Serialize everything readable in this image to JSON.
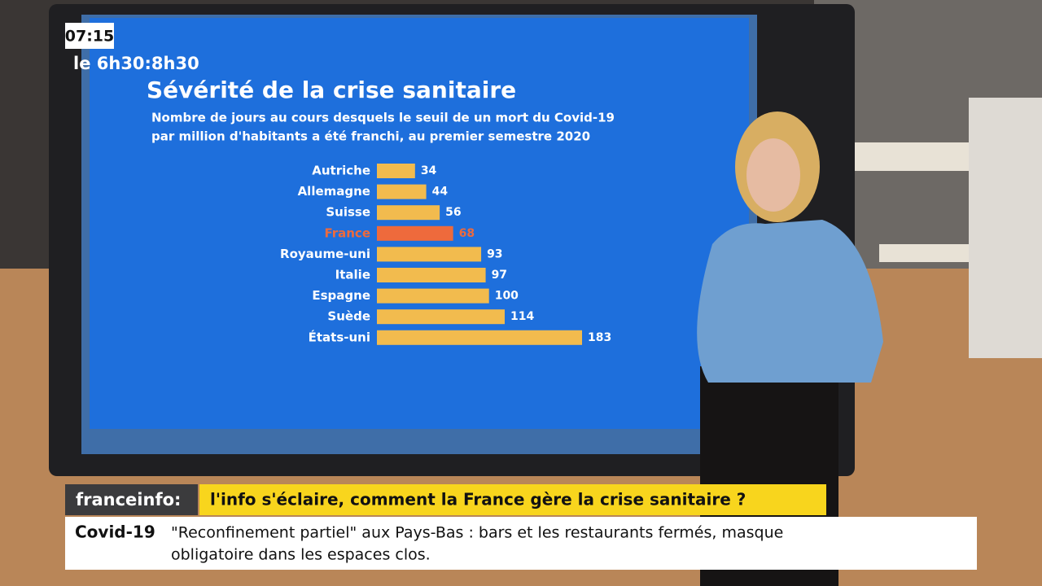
{
  "chart_data": {
    "type": "bar",
    "orientation": "horizontal",
    "title": "Sévérité de la crise sanitaire",
    "subtitle": [
      "Nombre de jours au cours desquels le seuil de un mort du Covid-19",
      "par million d'habitants a été franchi, au premier semestre 2020"
    ],
    "categories": [
      "Autriche",
      "Allemagne",
      "Suisse",
      "France",
      "Royaume-uni",
      "Italie",
      "Espagne",
      "Suède",
      "États-uni"
    ],
    "values": [
      34,
      44,
      56,
      68,
      93,
      97,
      100,
      114,
      183
    ],
    "colors": [
      "#f2bb4e",
      "#f2bb4e",
      "#f2bb4e",
      "#ee6a3c",
      "#f2bb4e",
      "#f2bb4e",
      "#f2bb4e",
      "#f2bb4e",
      "#f2bb4e"
    ]
  },
  "overlay": {
    "clock": "07:15",
    "slot": "le 6h30:8h30",
    "brand": "franceinfo:",
    "headline": "l'info s'éclaire, comment la France gère la crise sanitaire ?",
    "ticker_tag": "Covid-19",
    "ticker_text": [
      "\"Reconfinement partiel\" aux Pays-Bas : bars et les restaurants fermés, masque",
      "obligatoire dans les espaces clos."
    ]
  }
}
